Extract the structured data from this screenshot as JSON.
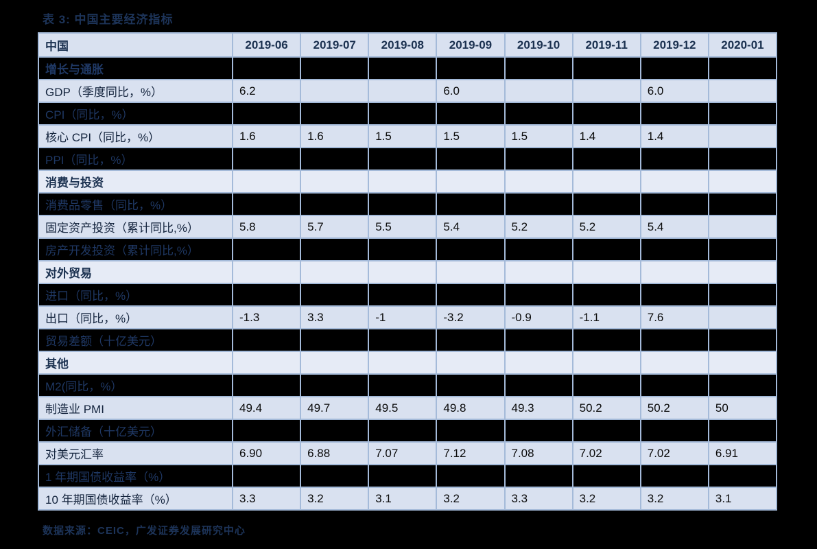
{
  "page": {
    "title": "表 3:  中国主要经济指标",
    "source_note": "数据来源：CEIC，广发证券发展研究中心"
  },
  "colors": {
    "page_background": "#000000",
    "light_row": "#d9e1f0",
    "section_light_row": "#e6ebf6",
    "dark_row": "#000000",
    "grid_border": "#a4bad9",
    "navy_text": "#1f3864",
    "header_text": "#1b3150",
    "value_text": "#0a0a0a"
  },
  "table": {
    "corner_label": "中国",
    "columns": [
      "2019-06",
      "2019-07",
      "2019-08",
      "2019-09",
      "2019-10",
      "2019-11",
      "2019-12",
      "2020-01"
    ],
    "rows": [
      {
        "label": "增长与通胀",
        "type": "section-dark",
        "values": [
          "",
          "",
          "",
          "",
          "",
          "",
          "",
          ""
        ]
      },
      {
        "label": "GDP（季度同比，%）",
        "type": "data",
        "values": [
          "6.2",
          "",
          "",
          "6.0",
          "",
          "",
          "6.0",
          ""
        ]
      },
      {
        "label": "CPI（同比，%）",
        "type": "dark",
        "values": [
          "",
          "",
          "",
          "",
          "",
          "",
          "",
          ""
        ]
      },
      {
        "label": "核心 CPI（同比，%）",
        "type": "data",
        "values": [
          "1.6",
          "1.6",
          "1.5",
          "1.5",
          "1.5",
          "1.4",
          "1.4",
          ""
        ]
      },
      {
        "label": "PPI（同比，%）",
        "type": "dark",
        "values": [
          "",
          "",
          "",
          "",
          "",
          "",
          "",
          ""
        ]
      },
      {
        "label": "消费与投资",
        "type": "section-light",
        "values": [
          "",
          "",
          "",
          "",
          "",
          "",
          "",
          ""
        ]
      },
      {
        "label": "消费品零售（同比，%）",
        "type": "dark",
        "values": [
          "",
          "",
          "",
          "",
          "",
          "",
          "",
          ""
        ]
      },
      {
        "label": "固定资产投资（累计同比,%）",
        "type": "data",
        "values": [
          "5.8",
          "5.7",
          "5.5",
          "5.4",
          "5.2",
          "5.2",
          "5.4",
          ""
        ]
      },
      {
        "label": "房产开发投资（累计同比,%）",
        "type": "dark",
        "values": [
          "",
          "",
          "",
          "",
          "",
          "",
          "",
          ""
        ]
      },
      {
        "label": "对外贸易",
        "type": "section-light",
        "values": [
          "",
          "",
          "",
          "",
          "",
          "",
          "",
          ""
        ]
      },
      {
        "label": "进口（同比，%）",
        "type": "dark",
        "values": [
          "",
          "",
          "",
          "",
          "",
          "",
          "",
          ""
        ]
      },
      {
        "label": "出口（同比，%）",
        "type": "data",
        "values": [
          "-1.3",
          "3.3",
          "-1",
          "-3.2",
          "-0.9",
          "-1.1",
          "7.6",
          ""
        ]
      },
      {
        "label": "贸易差额（十亿美元）",
        "type": "dark",
        "values": [
          "",
          "",
          "",
          "",
          "",
          "",
          "",
          ""
        ]
      },
      {
        "label": "其他",
        "type": "section-light",
        "values": [
          "",
          "",
          "",
          "",
          "",
          "",
          "",
          ""
        ]
      },
      {
        "label": "M2(同比，%）",
        "type": "dark",
        "values": [
          "",
          "",
          "",
          "",
          "",
          "",
          "",
          ""
        ]
      },
      {
        "label": "制造业 PMI",
        "type": "data",
        "values": [
          "49.4",
          "49.7",
          "49.5",
          "49.8",
          "49.3",
          "50.2",
          "50.2",
          "50"
        ]
      },
      {
        "label": "外汇储备（十亿美元）",
        "type": "dark",
        "values": [
          "",
          "",
          "",
          "",
          "",
          "",
          "",
          ""
        ]
      },
      {
        "label": "对美元汇率",
        "type": "data",
        "values": [
          "6.90",
          "6.88",
          "7.07",
          "7.12",
          "7.08",
          "7.02",
          "7.02",
          "6.91"
        ]
      },
      {
        "label": "1 年期国债收益率（%）",
        "type": "dark",
        "values": [
          "",
          "",
          "",
          "",
          "",
          "",
          "",
          ""
        ]
      },
      {
        "label": "10 年期国债收益率（%）",
        "type": "data",
        "values": [
          "3.3",
          "3.2",
          "3.1",
          "3.2",
          "3.3",
          "3.2",
          "3.2",
          "3.1"
        ]
      }
    ]
  }
}
